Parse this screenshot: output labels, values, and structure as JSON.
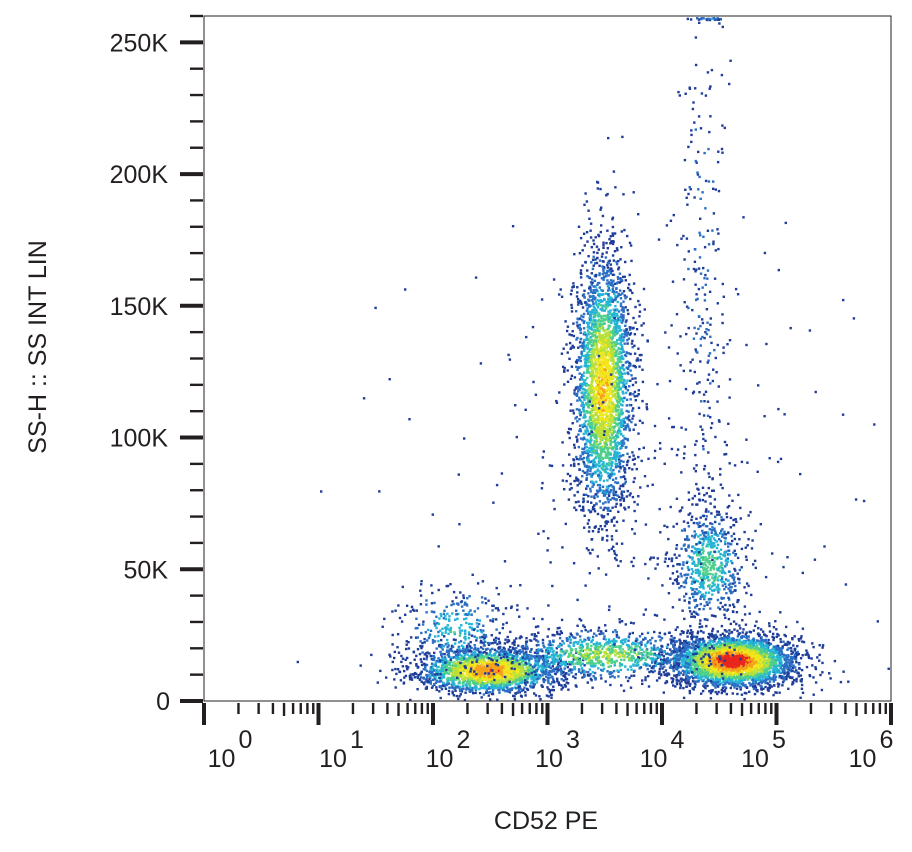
{
  "chart_data": {
    "type": "scatter",
    "subtype": "flow-cytometry-density-dot-plot",
    "xlabel": "CD52 PE",
    "ylabel": "SS-H :: SS INT LIN",
    "x_scale": "log",
    "y_scale": "linear",
    "xlim": [
      1,
      1000000
    ],
    "ylim": [
      0,
      260000
    ],
    "grid": false,
    "x_ticks": [
      {
        "base": "10",
        "exp": "0",
        "value": 1
      },
      {
        "base": "10",
        "exp": "1",
        "value": 10
      },
      {
        "base": "10",
        "exp": "2",
        "value": 100
      },
      {
        "base": "10",
        "exp": "3",
        "value": 1000
      },
      {
        "base": "10",
        "exp": "4",
        "value": 10000
      },
      {
        "base": "10",
        "exp": "5",
        "value": 100000
      },
      {
        "base": "10",
        "exp": "6",
        "value": 1000000
      }
    ],
    "y_ticks": [
      {
        "label": "0",
        "value": 0
      },
      {
        "label": "50K",
        "value": 50000
      },
      {
        "label": "100K",
        "value": 100000
      },
      {
        "label": "150K",
        "value": 150000
      },
      {
        "label": "200K",
        "value": 200000
      },
      {
        "label": "250K",
        "value": 250000
      }
    ],
    "density_colors": [
      "#1f3c99",
      "#2a6fc4",
      "#24b4d6",
      "#4fcf8c",
      "#b8e03a",
      "#f2e61c",
      "#f5a21a",
      "#e8261e"
    ],
    "populations": [
      {
        "x_center": 300,
        "y_center": 12000,
        "x_spread_decades": 0.32,
        "y_spread": 4500,
        "count": 2000,
        "peak_density": 0.85
      },
      {
        "x_center": 160,
        "y_center": 28000,
        "x_spread_decades": 0.25,
        "y_spread": 8000,
        "count": 300,
        "peak_density": 0.35
      },
      {
        "x_center": 3000,
        "y_center": 120000,
        "x_spread_decades": 0.13,
        "y_spread": 25000,
        "count": 2900,
        "peak_density": 0.75
      },
      {
        "x_center": 40000,
        "y_center": 15500,
        "x_spread_decades": 0.27,
        "y_spread": 5000,
        "count": 3200,
        "peak_density": 1.0
      },
      {
        "x_center": 25000,
        "y_center": 52000,
        "x_spread_decades": 0.16,
        "y_spread": 11000,
        "count": 650,
        "peak_density": 0.45
      },
      {
        "x_center": 22000,
        "y_center": 160000,
        "x_spread_decades": 0.13,
        "y_spread": 55000,
        "count": 260,
        "peak_density": 0.15
      },
      {
        "x_center": 3000,
        "y_center": 18000,
        "x_spread_decades": 0.45,
        "y_spread": 5000,
        "count": 900,
        "peak_density": 0.55
      },
      {
        "x_center": 25000,
        "y_center": 260000,
        "x_spread_decades": 0.08,
        "y_spread": 600,
        "count": 70,
        "peak_density": 0.35
      },
      {
        "x_center": 5000,
        "y_center": 80000,
        "x_spread_decades": 1.0,
        "y_spread": 50000,
        "count": 220,
        "peak_density": 0.05
      }
    ]
  }
}
